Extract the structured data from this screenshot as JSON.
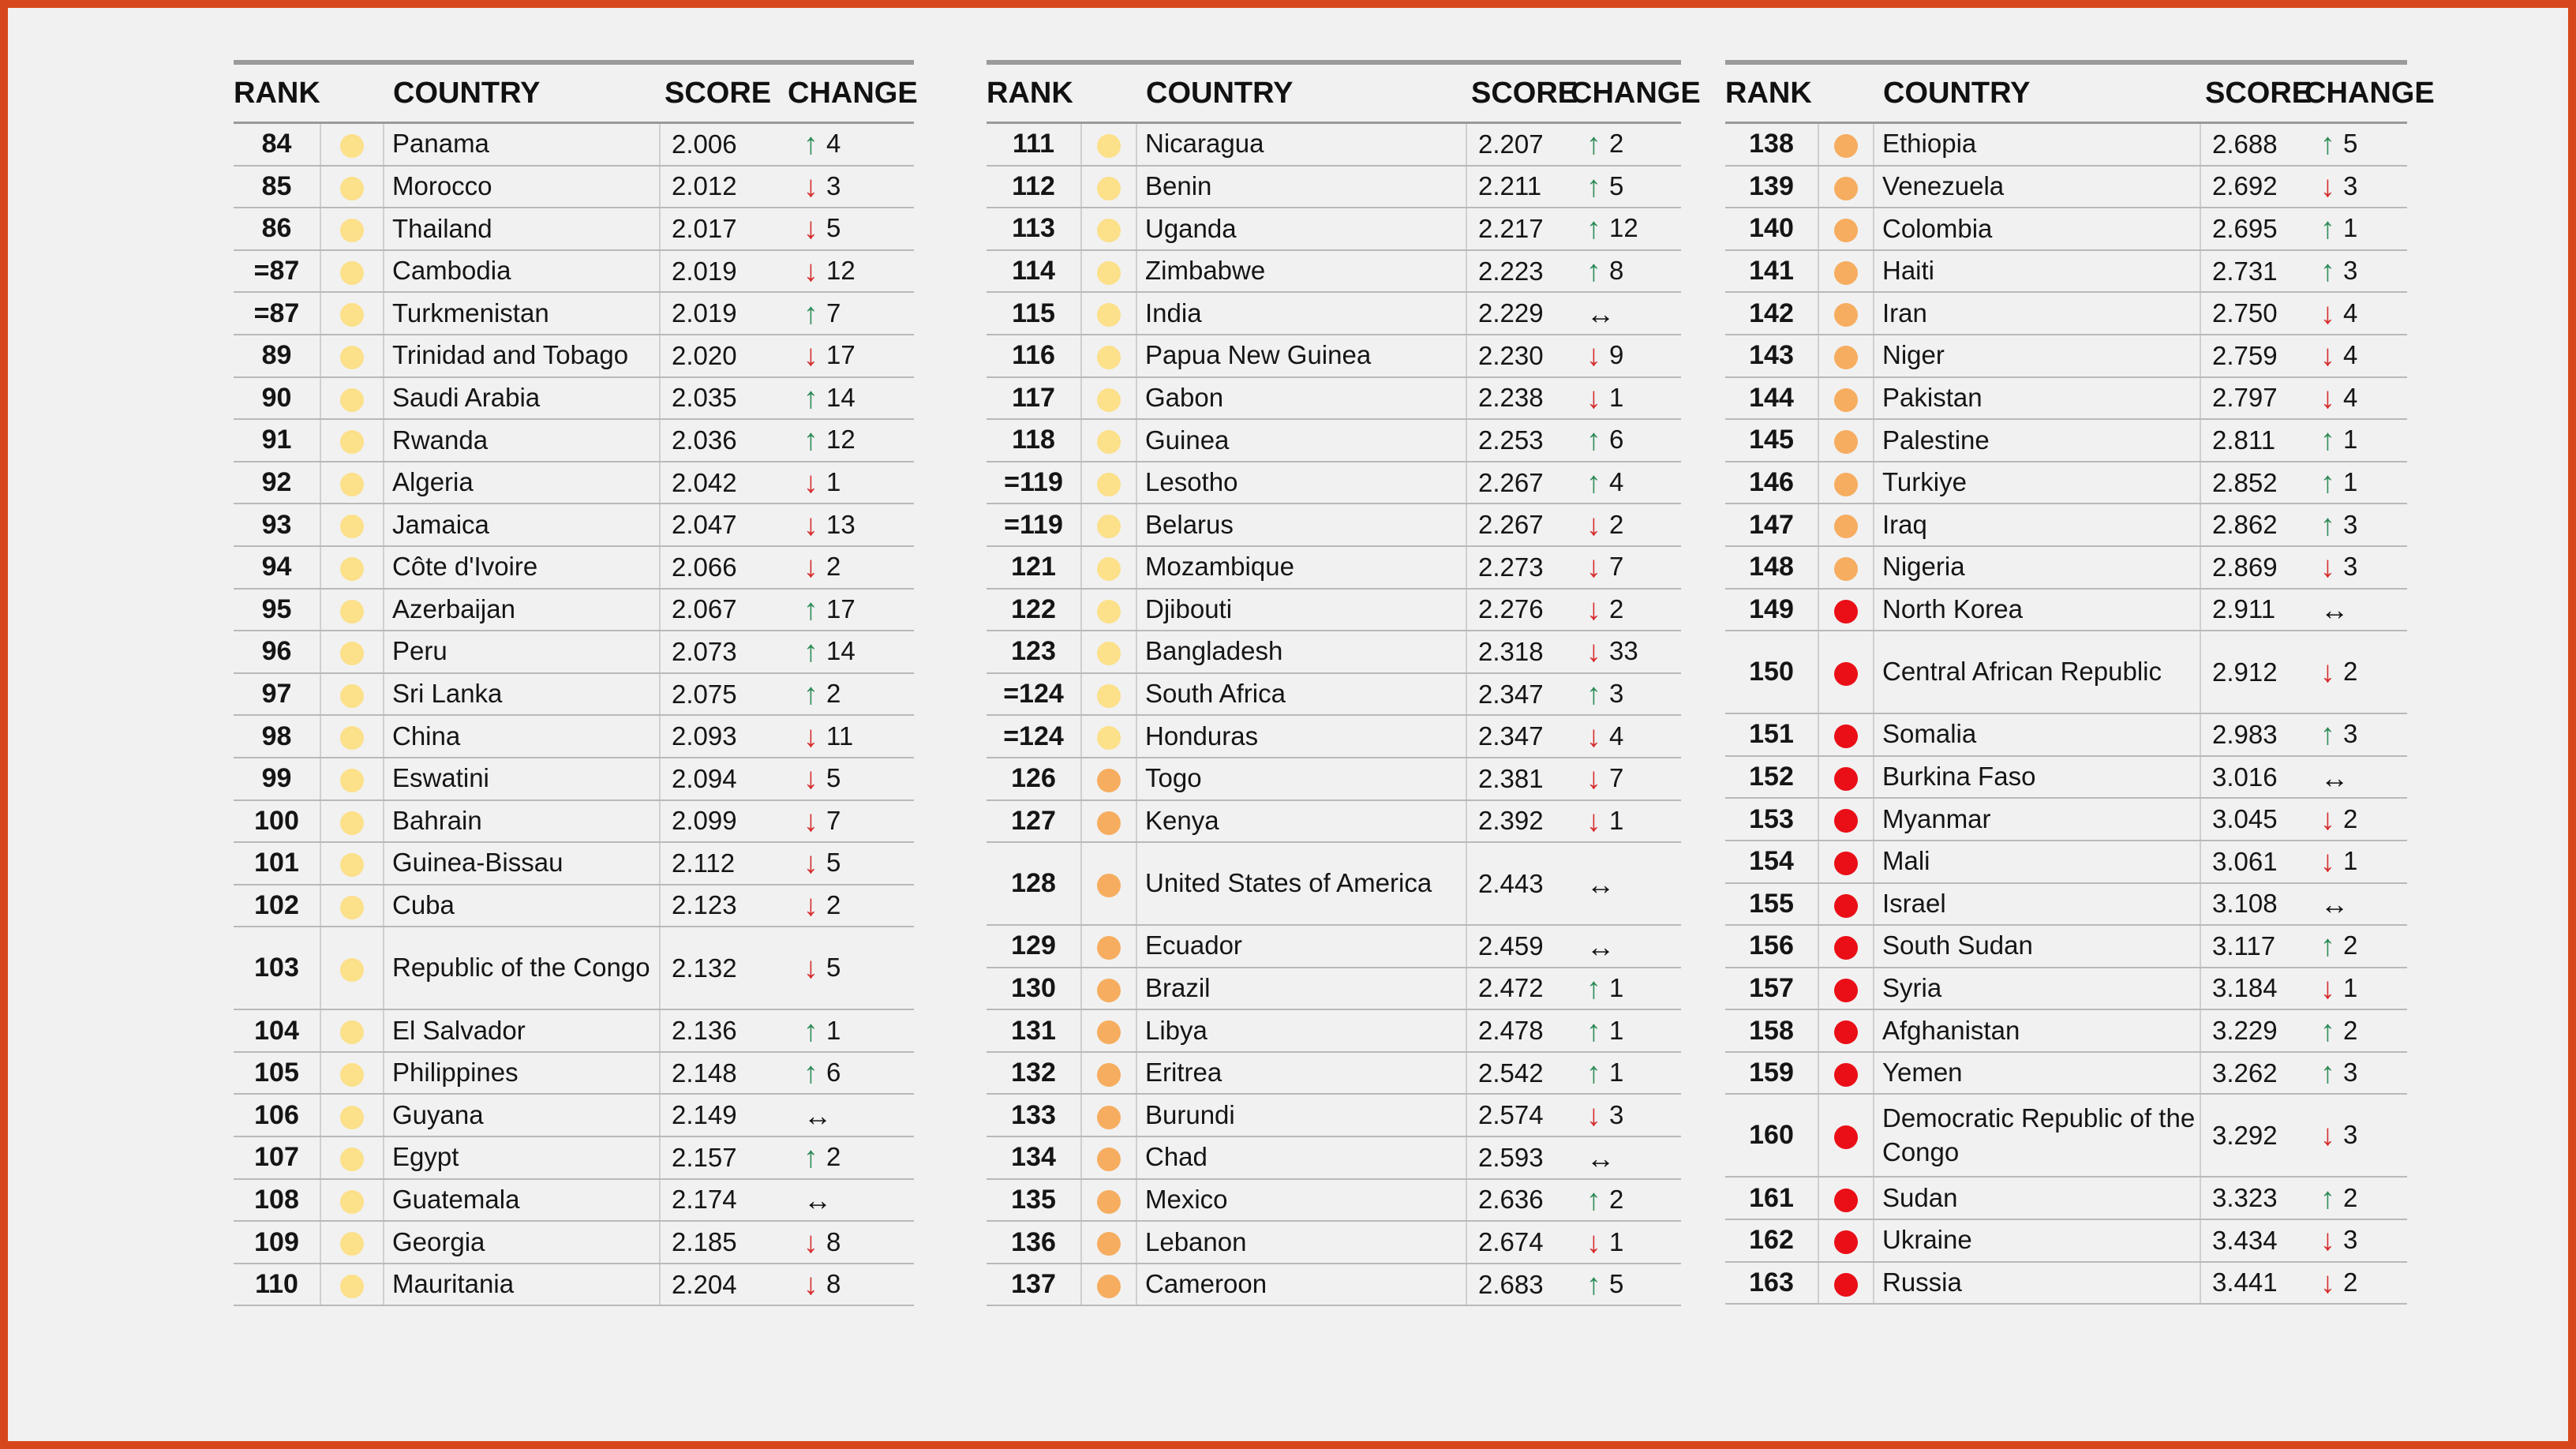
{
  "headers": {
    "rank": "RANK",
    "country": "COUNTRY",
    "score": "SCORE",
    "change": "CHANGE"
  },
  "colors": {
    "low": "#fce08a",
    "medium": "#f6ad5f",
    "high": "#ea0e16",
    "border": "#d7471d"
  },
  "tables": [
    {
      "rows": [
        {
          "rank": "84",
          "level": "low",
          "country": "Panama",
          "score": "2.006",
          "dir": "up",
          "change": "4"
        },
        {
          "rank": "85",
          "level": "low",
          "country": "Morocco",
          "score": "2.012",
          "dir": "down",
          "change": "3"
        },
        {
          "rank": "86",
          "level": "low",
          "country": "Thailand",
          "score": "2.017",
          "dir": "down",
          "change": "5"
        },
        {
          "rank": "=87",
          "level": "low",
          "country": "Cambodia",
          "score": "2.019",
          "dir": "down",
          "change": "12"
        },
        {
          "rank": "=87",
          "level": "low",
          "country": "Turkmenistan",
          "score": "2.019",
          "dir": "up",
          "change": "7"
        },
        {
          "rank": "89",
          "level": "low",
          "country": "Trinidad and Tobago",
          "score": "2.020",
          "dir": "down",
          "change": "17"
        },
        {
          "rank": "90",
          "level": "low",
          "country": "Saudi Arabia",
          "score": "2.035",
          "dir": "up",
          "change": "14"
        },
        {
          "rank": "91",
          "level": "low",
          "country": "Rwanda",
          "score": "2.036",
          "dir": "up",
          "change": "12"
        },
        {
          "rank": "92",
          "level": "low",
          "country": "Algeria",
          "score": "2.042",
          "dir": "down",
          "change": "1"
        },
        {
          "rank": "93",
          "level": "low",
          "country": "Jamaica",
          "score": "2.047",
          "dir": "down",
          "change": "13"
        },
        {
          "rank": "94",
          "level": "low",
          "country": "Côte d'Ivoire",
          "score": "2.066",
          "dir": "down",
          "change": "2"
        },
        {
          "rank": "95",
          "level": "low",
          "country": "Azerbaijan",
          "score": "2.067",
          "dir": "up",
          "change": "17"
        },
        {
          "rank": "96",
          "level": "low",
          "country": "Peru",
          "score": "2.073",
          "dir": "up",
          "change": "14"
        },
        {
          "rank": "97",
          "level": "low",
          "country": "Sri Lanka",
          "score": "2.075",
          "dir": "up",
          "change": "2"
        },
        {
          "rank": "98",
          "level": "low",
          "country": "China",
          "score": "2.093",
          "dir": "down",
          "change": "11"
        },
        {
          "rank": "99",
          "level": "low",
          "country": "Eswatini",
          "score": "2.094",
          "dir": "down",
          "change": "5"
        },
        {
          "rank": "100",
          "level": "low",
          "country": "Bahrain",
          "score": "2.099",
          "dir": "down",
          "change": "7"
        },
        {
          "rank": "101",
          "level": "low",
          "country": "Guinea-Bissau",
          "score": "2.112",
          "dir": "down",
          "change": "5"
        },
        {
          "rank": "102",
          "level": "low",
          "country": "Cuba",
          "score": "2.123",
          "dir": "down",
          "change": "2"
        },
        {
          "rank": "103",
          "level": "low",
          "country": "Republic of the Congo",
          "score": "2.132",
          "dir": "down",
          "change": "5",
          "tall": true
        },
        {
          "rank": "104",
          "level": "low",
          "country": "El Salvador",
          "score": "2.136",
          "dir": "up",
          "change": "1"
        },
        {
          "rank": "105",
          "level": "low",
          "country": "Philippines",
          "score": "2.148",
          "dir": "up",
          "change": "6"
        },
        {
          "rank": "106",
          "level": "low",
          "country": "Guyana",
          "score": "2.149",
          "dir": "same",
          "change": ""
        },
        {
          "rank": "107",
          "level": "low",
          "country": "Egypt",
          "score": "2.157",
          "dir": "up",
          "change": "2"
        },
        {
          "rank": "108",
          "level": "low",
          "country": "Guatemala",
          "score": "2.174",
          "dir": "same",
          "change": ""
        },
        {
          "rank": "109",
          "level": "low",
          "country": "Georgia",
          "score": "2.185",
          "dir": "down",
          "change": "8"
        },
        {
          "rank": "110",
          "level": "low",
          "country": "Mauritania",
          "score": "2.204",
          "dir": "down",
          "change": "8"
        }
      ]
    },
    {
      "rows": [
        {
          "rank": "111",
          "level": "low",
          "country": "Nicaragua",
          "score": "2.207",
          "dir": "up",
          "change": "2"
        },
        {
          "rank": "112",
          "level": "low",
          "country": "Benin",
          "score": "2.211",
          "dir": "up",
          "change": "5"
        },
        {
          "rank": "113",
          "level": "low",
          "country": "Uganda",
          "score": "2.217",
          "dir": "up",
          "change": "12"
        },
        {
          "rank": "114",
          "level": "low",
          "country": "Zimbabwe",
          "score": "2.223",
          "dir": "up",
          "change": "8"
        },
        {
          "rank": "115",
          "level": "low",
          "country": "India",
          "score": "2.229",
          "dir": "same",
          "change": ""
        },
        {
          "rank": "116",
          "level": "low",
          "country": "Papua New Guinea",
          "score": "2.230",
          "dir": "down",
          "change": "9"
        },
        {
          "rank": "117",
          "level": "low",
          "country": "Gabon",
          "score": "2.238",
          "dir": "down",
          "change": "1"
        },
        {
          "rank": "118",
          "level": "low",
          "country": "Guinea",
          "score": "2.253",
          "dir": "up",
          "change": "6"
        },
        {
          "rank": "=119",
          "level": "low",
          "country": "Lesotho",
          "score": "2.267",
          "dir": "up",
          "change": "4"
        },
        {
          "rank": "=119",
          "level": "low",
          "country": "Belarus",
          "score": "2.267",
          "dir": "down",
          "change": "2"
        },
        {
          "rank": "121",
          "level": "low",
          "country": "Mozambique",
          "score": "2.273",
          "dir": "down",
          "change": "7"
        },
        {
          "rank": "122",
          "level": "low",
          "country": "Djibouti",
          "score": "2.276",
          "dir": "down",
          "change": "2"
        },
        {
          "rank": "123",
          "level": "low",
          "country": "Bangladesh",
          "score": "2.318",
          "dir": "down",
          "change": "33"
        },
        {
          "rank": "=124",
          "level": "low",
          "country": "South Africa",
          "score": "2.347",
          "dir": "up",
          "change": "3"
        },
        {
          "rank": "=124",
          "level": "low",
          "country": "Honduras",
          "score": "2.347",
          "dir": "down",
          "change": "4"
        },
        {
          "rank": "126",
          "level": "medium",
          "country": "Togo",
          "score": "2.381",
          "dir": "down",
          "change": "7"
        },
        {
          "rank": "127",
          "level": "medium",
          "country": "Kenya",
          "score": "2.392",
          "dir": "down",
          "change": "1"
        },
        {
          "rank": "128",
          "level": "medium",
          "country": "United States of America",
          "score": "2.443",
          "dir": "same",
          "change": "",
          "tall": true
        },
        {
          "rank": "129",
          "level": "medium",
          "country": "Ecuador",
          "score": "2.459",
          "dir": "same",
          "change": ""
        },
        {
          "rank": "130",
          "level": "medium",
          "country": "Brazil",
          "score": "2.472",
          "dir": "up",
          "change": "1"
        },
        {
          "rank": "131",
          "level": "medium",
          "country": "Libya",
          "score": "2.478",
          "dir": "up",
          "change": "1"
        },
        {
          "rank": "132",
          "level": "medium",
          "country": "Eritrea",
          "score": "2.542",
          "dir": "up",
          "change": "1"
        },
        {
          "rank": "133",
          "level": "medium",
          "country": "Burundi",
          "score": "2.574",
          "dir": "down",
          "change": "3"
        },
        {
          "rank": "134",
          "level": "medium",
          "country": "Chad",
          "score": "2.593",
          "dir": "same",
          "change": ""
        },
        {
          "rank": "135",
          "level": "medium",
          "country": "Mexico",
          "score": "2.636",
          "dir": "up",
          "change": "2"
        },
        {
          "rank": "136",
          "level": "medium",
          "country": "Lebanon",
          "score": "2.674",
          "dir": "down",
          "change": "1"
        },
        {
          "rank": "137",
          "level": "medium",
          "country": "Cameroon",
          "score": "2.683",
          "dir": "up",
          "change": "5"
        }
      ]
    },
    {
      "rows": [
        {
          "rank": "138",
          "level": "medium",
          "country": "Ethiopia",
          "score": "2.688",
          "dir": "up",
          "change": "5"
        },
        {
          "rank": "139",
          "level": "medium",
          "country": "Venezuela",
          "score": "2.692",
          "dir": "down",
          "change": "3"
        },
        {
          "rank": "140",
          "level": "medium",
          "country": "Colombia",
          "score": "2.695",
          "dir": "up",
          "change": "1"
        },
        {
          "rank": "141",
          "level": "medium",
          "country": "Haiti",
          "score": "2.731",
          "dir": "up",
          "change": "3"
        },
        {
          "rank": "142",
          "level": "medium",
          "country": "Iran",
          "score": "2.750",
          "dir": "down",
          "change": "4"
        },
        {
          "rank": "143",
          "level": "medium",
          "country": "Niger",
          "score": "2.759",
          "dir": "down",
          "change": "4"
        },
        {
          "rank": "144",
          "level": "medium",
          "country": "Pakistan",
          "score": "2.797",
          "dir": "down",
          "change": "4"
        },
        {
          "rank": "145",
          "level": "medium",
          "country": "Palestine",
          "score": "2.811",
          "dir": "up",
          "change": "1"
        },
        {
          "rank": "146",
          "level": "medium",
          "country": "Turkiye",
          "score": "2.852",
          "dir": "up",
          "change": "1"
        },
        {
          "rank": "147",
          "level": "medium",
          "country": "Iraq",
          "score": "2.862",
          "dir": "up",
          "change": "3"
        },
        {
          "rank": "148",
          "level": "medium",
          "country": "Nigeria",
          "score": "2.869",
          "dir": "down",
          "change": "3"
        },
        {
          "rank": "149",
          "level": "high",
          "country": "North Korea",
          "score": "2.911",
          "dir": "same",
          "change": ""
        },
        {
          "rank": "150",
          "level": "high",
          "country": "Central African Republic",
          "score": "2.912",
          "dir": "down",
          "change": "2",
          "tall": true
        },
        {
          "rank": "151",
          "level": "high",
          "country": "Somalia",
          "score": "2.983",
          "dir": "up",
          "change": "3"
        },
        {
          "rank": "152",
          "level": "high",
          "country": "Burkina Faso",
          "score": "3.016",
          "dir": "same",
          "change": ""
        },
        {
          "rank": "153",
          "level": "high",
          "country": "Myanmar",
          "score": "3.045",
          "dir": "down",
          "change": "2"
        },
        {
          "rank": "154",
          "level": "high",
          "country": "Mali",
          "score": "3.061",
          "dir": "down",
          "change": "1"
        },
        {
          "rank": "155",
          "level": "high",
          "country": "Israel",
          "score": "3.108",
          "dir": "same",
          "change": ""
        },
        {
          "rank": "156",
          "level": "high",
          "country": "South Sudan",
          "score": "3.117",
          "dir": "up",
          "change": "2"
        },
        {
          "rank": "157",
          "level": "high",
          "country": "Syria",
          "score": "3.184",
          "dir": "down",
          "change": "1"
        },
        {
          "rank": "158",
          "level": "high",
          "country": "Afghanistan",
          "score": "3.229",
          "dir": "up",
          "change": "2"
        },
        {
          "rank": "159",
          "level": "high",
          "country": "Yemen",
          "score": "3.262",
          "dir": "up",
          "change": "3"
        },
        {
          "rank": "160",
          "level": "high",
          "country": "Democratic Republic of the Congo",
          "score": "3.292",
          "dir": "down",
          "change": "3",
          "tall": true
        },
        {
          "rank": "161",
          "level": "high",
          "country": "Sudan",
          "score": "3.323",
          "dir": "up",
          "change": "2"
        },
        {
          "rank": "162",
          "level": "high",
          "country": "Ukraine",
          "score": "3.434",
          "dir": "down",
          "change": "3"
        },
        {
          "rank": "163",
          "level": "high",
          "country": "Russia",
          "score": "3.441",
          "dir": "down",
          "change": "2"
        }
      ]
    }
  ]
}
